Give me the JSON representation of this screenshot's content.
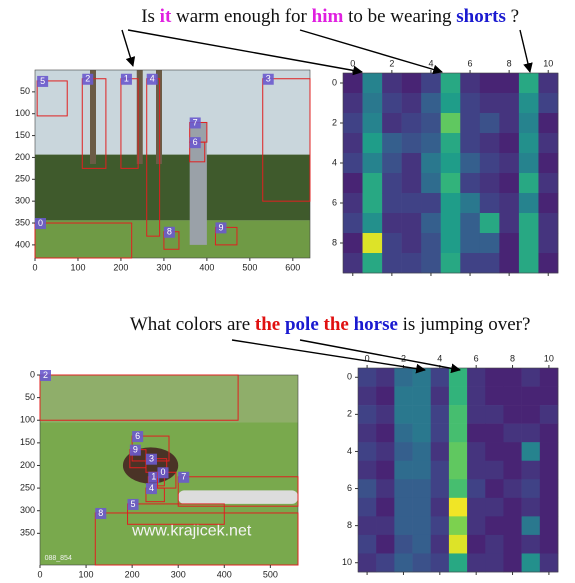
{
  "panels": [
    {
      "question": [
        {
          "text": "Is"
        },
        {
          "text": "it",
          "color": "#e020e0",
          "bold": true
        },
        {
          "text": "warm"
        },
        {
          "text": "enough"
        },
        {
          "text": "for"
        },
        {
          "text": "him",
          "color": "#e020e0",
          "bold": true
        },
        {
          "text": "to"
        },
        {
          "text": "be"
        },
        {
          "text": "wearing"
        },
        {
          "text": "shorts",
          "color": "#1a1ad0",
          "bold": true
        },
        {
          "text": "?"
        }
      ],
      "image": {
        "xlim": [
          0,
          640
        ],
        "ylim": [
          430,
          0
        ],
        "xticks": [
          0,
          100,
          200,
          300,
          400,
          500,
          600
        ],
        "yticks": [
          50,
          100,
          150,
          200,
          250,
          300,
          350,
          400
        ],
        "boxes": [
          {
            "label": "5",
            "box": [
              5,
              25,
              75,
              105
            ]
          },
          {
            "label": "2",
            "box": [
              110,
              20,
              165,
              225
            ]
          },
          {
            "label": "1",
            "box": [
              200,
              20,
              240,
              225
            ]
          },
          {
            "label": "4",
            "box": [
              260,
              20,
              290,
              380
            ]
          },
          {
            "label": "3",
            "box": [
              530,
              20,
              640,
              300
            ]
          },
          {
            "label": "7",
            "box": [
              360,
              120,
              400,
              165
            ]
          },
          {
            "label": "6",
            "box": [
              360,
              165,
              395,
              210
            ]
          },
          {
            "label": "8",
            "box": [
              300,
              370,
              335,
              410
            ]
          },
          {
            "label": "9",
            "box": [
              420,
              360,
              470,
              400
            ]
          },
          {
            "label": "0",
            "box": [
              0,
              350,
              225,
              430
            ]
          }
        ]
      }
    },
    {
      "question": [
        {
          "text": "What"
        },
        {
          "text": "colors"
        },
        {
          "text": "are"
        },
        {
          "text": "the",
          "color": "#e01010",
          "bold": true
        },
        {
          "text": "pole",
          "color": "#1a1ad0",
          "bold": true
        },
        {
          "text": "the",
          "color": "#e01010",
          "bold": true
        },
        {
          "text": "horse",
          "color": "#1a1ad0",
          "bold": true
        },
        {
          "text": "is"
        },
        {
          "text": "jumping"
        },
        {
          "text": "over?"
        }
      ],
      "image": {
        "xlim": [
          0,
          560
        ],
        "ylim": [
          420,
          0
        ],
        "xticks": [
          0,
          100,
          200,
          300,
          400,
          500
        ],
        "yticks": [
          0,
          50,
          100,
          150,
          200,
          250,
          300,
          350
        ],
        "watermarks": [
          "www.krajicek.net",
          "088_854"
        ],
        "boxes": [
          {
            "label": "2",
            "box": [
              0,
              0,
              430,
              100
            ]
          },
          {
            "label": "6",
            "box": [
              200,
              135,
              280,
              190
            ]
          },
          {
            "label": "9",
            "box": [
              195,
              165,
              230,
              205
            ]
          },
          {
            "label": "3",
            "box": [
              230,
              185,
              275,
              215
            ]
          },
          {
            "label": "1",
            "box": [
              235,
              225,
              270,
              245
            ]
          },
          {
            "label": "0",
            "box": [
              255,
              215,
              295,
              250
            ]
          },
          {
            "label": "7",
            "box": [
              300,
              225,
              560,
              290
            ]
          },
          {
            "label": "4",
            "box": [
              230,
              250,
              270,
              280
            ]
          },
          {
            "label": "5",
            "box": [
              190,
              285,
              400,
              330
            ]
          },
          {
            "label": "8",
            "box": [
              120,
              305,
              560,
              420
            ]
          }
        ]
      }
    }
  ],
  "chart_data": [
    {
      "type": "heatmap",
      "colormap": "viridis",
      "xlim": [
        -0.5,
        10.5
      ],
      "ylim": [
        9.5,
        -0.5
      ],
      "xticks": [
        0,
        2,
        4,
        6,
        8,
        10
      ],
      "yticks": [
        0,
        2,
        4,
        6,
        8
      ],
      "values": [
        [
          0.1,
          0.45,
          0.15,
          0.1,
          0.2,
          0.6,
          0.15,
          0.1,
          0.1,
          0.6,
          0.15
        ],
        [
          0.15,
          0.4,
          0.2,
          0.15,
          0.3,
          0.55,
          0.2,
          0.15,
          0.15,
          0.5,
          0.2
        ],
        [
          0.2,
          0.45,
          0.15,
          0.2,
          0.25,
          0.75,
          0.2,
          0.25,
          0.15,
          0.45,
          0.1
        ],
        [
          0.15,
          0.55,
          0.3,
          0.25,
          0.3,
          0.6,
          0.2,
          0.15,
          0.1,
          0.5,
          0.15
        ],
        [
          0.2,
          0.45,
          0.25,
          0.15,
          0.4,
          0.55,
          0.3,
          0.2,
          0.15,
          0.45,
          0.1
        ],
        [
          0.1,
          0.6,
          0.2,
          0.15,
          0.35,
          0.65,
          0.2,
          0.15,
          0.1,
          0.6,
          0.15
        ],
        [
          0.15,
          0.6,
          0.2,
          0.2,
          0.2,
          0.55,
          0.4,
          0.2,
          0.15,
          0.45,
          0.1
        ],
        [
          0.2,
          0.5,
          0.15,
          0.15,
          0.3,
          0.55,
          0.3,
          0.6,
          0.15,
          0.6,
          0.15
        ],
        [
          0.1,
          0.95,
          0.2,
          0.15,
          0.25,
          0.55,
          0.3,
          0.3,
          0.1,
          0.6,
          0.15
        ],
        [
          0.15,
          0.6,
          0.2,
          0.2,
          0.25,
          0.6,
          0.2,
          0.2,
          0.1,
          0.6,
          0.1
        ]
      ]
    },
    {
      "type": "heatmap",
      "colormap": "viridis",
      "xlim": [
        -0.5,
        10.5
      ],
      "ylim": [
        10.5,
        -0.5
      ],
      "xticks": [
        0,
        2,
        4,
        6,
        8,
        10
      ],
      "yticks": [
        0,
        2,
        4,
        6,
        8,
        10
      ],
      "values": [
        [
          0.2,
          0.15,
          0.35,
          0.4,
          0.2,
          0.65,
          0.15,
          0.1,
          0.1,
          0.15,
          0.1
        ],
        [
          0.15,
          0.1,
          0.4,
          0.4,
          0.15,
          0.65,
          0.15,
          0.1,
          0.1,
          0.1,
          0.1
        ],
        [
          0.2,
          0.15,
          0.4,
          0.4,
          0.2,
          0.7,
          0.15,
          0.15,
          0.1,
          0.1,
          0.15
        ],
        [
          0.15,
          0.1,
          0.35,
          0.4,
          0.2,
          0.7,
          0.1,
          0.1,
          0.15,
          0.15,
          0.1
        ],
        [
          0.2,
          0.15,
          0.3,
          0.35,
          0.15,
          0.75,
          0.15,
          0.1,
          0.1,
          0.45,
          0.1
        ],
        [
          0.15,
          0.1,
          0.35,
          0.35,
          0.2,
          0.75,
          0.15,
          0.15,
          0.1,
          0.15,
          0.1
        ],
        [
          0.25,
          0.15,
          0.3,
          0.3,
          0.2,
          0.7,
          0.2,
          0.1,
          0.15,
          0.2,
          0.1
        ],
        [
          0.2,
          0.1,
          0.3,
          0.3,
          0.15,
          0.98,
          0.15,
          0.15,
          0.1,
          0.15,
          0.1
        ],
        [
          0.15,
          0.15,
          0.3,
          0.3,
          0.2,
          0.8,
          0.15,
          0.1,
          0.1,
          0.4,
          0.1
        ],
        [
          0.2,
          0.1,
          0.25,
          0.3,
          0.15,
          0.95,
          0.1,
          0.15,
          0.1,
          0.15,
          0.1
        ],
        [
          0.15,
          0.2,
          0.3,
          0.25,
          0.2,
          0.6,
          0.15,
          0.15,
          0.1,
          0.5,
          0.15
        ]
      ]
    }
  ]
}
